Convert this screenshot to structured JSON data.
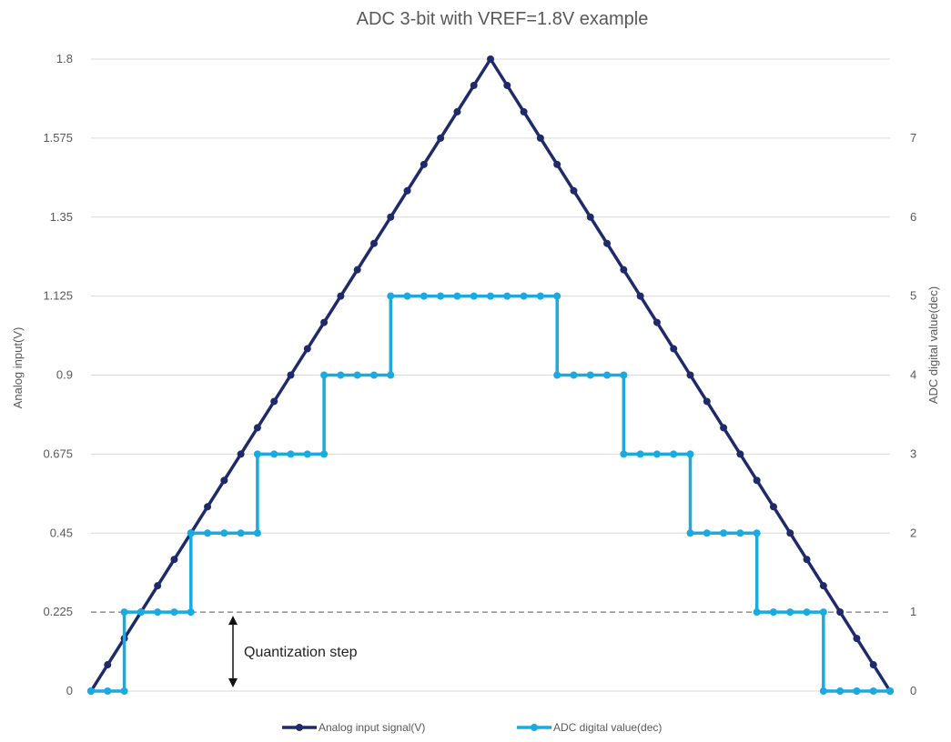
{
  "chart_data": {
    "type": "line",
    "title": "ADC 3-bit with VREF=1.8V example",
    "ylabel_left": "Analog input(V)",
    "ylabel_right": "ADC digital value(dec)",
    "y_left_ticks": [
      "1.8",
      "1.575",
      "1.35",
      "1.125",
      "0.9",
      "0.675",
      "0.45",
      "0.225",
      "0"
    ],
    "y_left_range": [
      0,
      1.8
    ],
    "y_right_ticks": [
      "7",
      "6",
      "5",
      "4",
      "3",
      "2",
      "1",
      "0"
    ],
    "y_right_range": [
      0,
      8
    ],
    "gridlines": true,
    "legend_position": "bottom",
    "x_range": [
      0,
      48
    ],
    "series": [
      {
        "name": "Analog input signal(V)",
        "axis": "left",
        "color": "#1f2a6b",
        "x": [
          0,
          1,
          2,
          3,
          4,
          5,
          6,
          7,
          8,
          9,
          10,
          11,
          12,
          13,
          14,
          15,
          16,
          17,
          18,
          19,
          20,
          21,
          22,
          23,
          24,
          25,
          26,
          27,
          28,
          29,
          30,
          31,
          32,
          33,
          34,
          35,
          36,
          37,
          38,
          39,
          40,
          41,
          42,
          43,
          44,
          45,
          46,
          47,
          48
        ],
        "values": [
          0,
          0.075,
          0.15,
          0.225,
          0.3,
          0.375,
          0.45,
          0.525,
          0.6,
          0.675,
          0.75,
          0.825,
          0.9,
          0.975,
          1.05,
          1.125,
          1.2,
          1.275,
          1.35,
          1.425,
          1.5,
          1.575,
          1.65,
          1.725,
          1.8,
          1.725,
          1.65,
          1.575,
          1.5,
          1.425,
          1.35,
          1.275,
          1.2,
          1.125,
          1.05,
          0.975,
          0.9,
          0.825,
          0.75,
          0.675,
          0.6,
          0.525,
          0.45,
          0.375,
          0.3,
          0.225,
          0.15,
          0.075,
          0
        ]
      },
      {
        "name": "ADC digital value(dec)",
        "axis": "right",
        "color": "#1aaae0",
        "x": [
          0,
          1,
          2,
          2,
          3,
          4,
          5,
          6,
          6,
          7,
          8,
          9,
          10,
          10,
          11,
          12,
          13,
          14,
          14,
          15,
          16,
          17,
          18,
          18,
          19,
          20,
          21,
          22,
          23,
          24,
          25,
          26,
          27,
          28,
          28,
          29,
          30,
          31,
          32,
          32,
          33,
          34,
          35,
          36,
          36,
          37,
          38,
          39,
          40,
          40,
          41,
          42,
          43,
          44,
          44,
          45,
          46,
          46,
          47,
          48
        ],
        "values": [
          0,
          0,
          0,
          1,
          1,
          1,
          1,
          1,
          2,
          2,
          2,
          2,
          2,
          3,
          3,
          3,
          3,
          3,
          4,
          4,
          4,
          4,
          4,
          5,
          5,
          5,
          5,
          5,
          5,
          5,
          5,
          5,
          5,
          5,
          4,
          4,
          4,
          4,
          4,
          3,
          3,
          3,
          3,
          3,
          2,
          2,
          2,
          2,
          2,
          1,
          1,
          1,
          1,
          1,
          0,
          0,
          0,
          0,
          0,
          0
        ]
      }
    ],
    "annotations": [
      {
        "text": "Quantization step",
        "from": 0,
        "to": 0.225
      }
    ]
  }
}
